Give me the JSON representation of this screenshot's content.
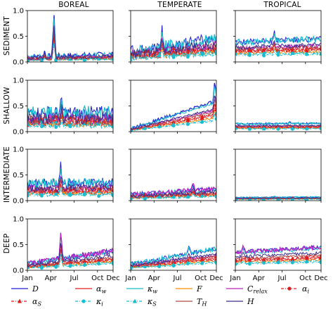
{
  "chart_data": {
    "type": "line",
    "columns": [
      "BOREAL",
      "TEMPERATE",
      "TROPICAL"
    ],
    "rows": [
      "SEDIMENT",
      "SHALLOW",
      "INTERMEDIATE",
      "DEEP"
    ],
    "x_ticks": [
      "Jan",
      "Apr",
      "Jul",
      "Oct",
      "Dec"
    ],
    "x_tick_months": [
      1,
      4,
      7,
      10,
      12
    ],
    "xlim": [
      1,
      12
    ],
    "ylim": [
      0,
      1.0
    ],
    "y_ticks": [
      "0.0",
      "0.5",
      "1.0"
    ],
    "y_tick_values": [
      0,
      0.5,
      1.0
    ],
    "legend_placement": "bottom",
    "series": [
      {
        "key": "D",
        "label": "D",
        "sub": "",
        "color": "#1f1fd0",
        "marker": "none",
        "dash": "solid"
      },
      {
        "key": "aw",
        "label": "α",
        "sub": "w",
        "color": "#e31a1c",
        "marker": "none",
        "dash": "solid"
      },
      {
        "key": "kw",
        "label": "κ",
        "sub": "w",
        "color": "#17becf",
        "marker": "none",
        "dash": "solid"
      },
      {
        "key": "F",
        "label": "F",
        "sub": "",
        "color": "#ff8c00",
        "marker": "none",
        "dash": "solid"
      },
      {
        "key": "Crelax",
        "label": "C",
        "sub": "relax",
        "color": "#bf1fbf",
        "marker": "none",
        "dash": "solid"
      },
      {
        "key": "ai",
        "label": "α",
        "sub": "i",
        "color": "#e31a1c",
        "marker": "circle",
        "dash": "dashdot"
      },
      {
        "key": "as",
        "label": "α",
        "sub": "S",
        "color": "#e31a1c",
        "marker": "triangle",
        "dash": "dashdot"
      },
      {
        "key": "ki",
        "label": "κ",
        "sub": "i",
        "color": "#17becf",
        "marker": "circle",
        "dash": "dashdot"
      },
      {
        "key": "ks",
        "label": "κ",
        "sub": "S",
        "color": "#17becf",
        "marker": "triangle",
        "dash": "dashdot"
      },
      {
        "key": "TH",
        "label": "T",
        "sub": "H",
        "color": "#b04a4a",
        "marker": "none",
        "dash": "solid"
      },
      {
        "key": "H",
        "label": "H",
        "sub": "",
        "color": "#3b2f8f",
        "marker": "none",
        "dash": "solid"
      }
    ],
    "panels": [
      [
        {
          "base": 0.1,
          "spike": [
            4.4,
            0.98
          ],
          "spike2": [
            3.2,
            0.2
          ],
          "end": 0.15,
          "top": "D",
          "noise": 0.05
        },
        {
          "base": 0.35,
          "spike": [
            5.4,
            0.62
          ],
          "end": 0.35,
          "top": "kw",
          "noise": 0.15
        },
        {
          "base": 0.32,
          "spike": [
            5.3,
            0.68
          ],
          "end": 0.35,
          "top": "kw",
          "noise": 0.1
        },
        {
          "base": 0.13,
          "spike": [
            5.3,
            0.7
          ],
          "end": 0.38,
          "top": "Crelax",
          "noise": 0.05
        }
      ],
      [
        {
          "base": 0.2,
          "spike": [
            5.0,
            0.55
          ],
          "end": 0.45,
          "top": "kw",
          "noise": 0.12
        },
        {
          "base": 0.06,
          "spike": [
            11.8,
            0.5
          ],
          "end": 0.6,
          "top": "D",
          "noise": 0.03
        },
        {
          "base": 0.12,
          "spike": [
            9.0,
            0.25
          ],
          "end": 0.22,
          "top": "Crelax",
          "noise": 0.05
        },
        {
          "base": 0.12,
          "spike": [
            8.5,
            0.25
          ],
          "end": 0.42,
          "top": "kw",
          "noise": 0.04
        }
      ],
      [
        {
          "base": 0.38,
          "spike": [
            6.0,
            0.55
          ],
          "end": 0.45,
          "top": "kw",
          "noise": 0.06
        },
        {
          "base": 0.15,
          "spike": [
            8.0,
            0.18
          ],
          "end": 0.16,
          "top": "kw",
          "noise": 0.02
        },
        {
          "base": 0.06,
          "spike": [
            6.0,
            0.08
          ],
          "end": 0.07,
          "top": "kw",
          "noise": 0.01
        },
        {
          "base": 0.35,
          "spike": [
            2.0,
            0.45
          ],
          "end": 0.45,
          "top": "Crelax",
          "noise": 0.04
        }
      ]
    ]
  }
}
